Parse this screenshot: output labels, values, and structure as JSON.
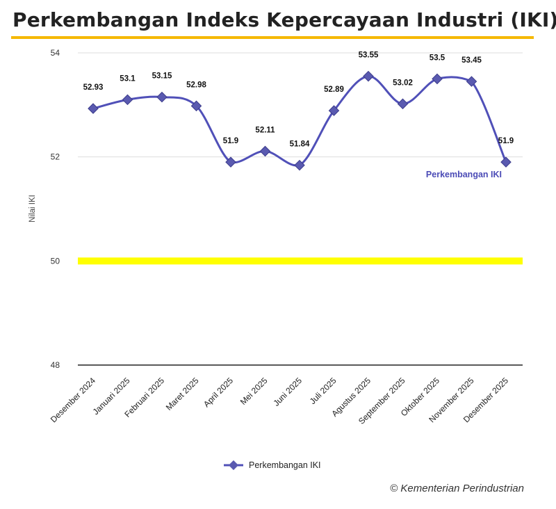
{
  "header": {
    "title": "Perkembangan Indeks Kepercayaan Industri (IKI)"
  },
  "footer": {
    "copyright": "© Kementerian Perindustrian"
  },
  "colors": {
    "line": "#5050b8",
    "marker": "#5a5ab0",
    "threshold": "#ffff00",
    "accent": "#f5b800",
    "grid": "#dddddd",
    "baseline": "#222222"
  },
  "chart_data": {
    "type": "line",
    "title": "Perkembangan Indeks Kepercayaan Industri (IKI)",
    "xlabel": "",
    "ylabel": "Nilai IKI",
    "ylim": [
      48,
      54
    ],
    "yticks": [
      "48",
      "50",
      "52",
      "54"
    ],
    "grid": true,
    "categories": [
      "Desember 2024",
      "Januari 2025",
      "Februari 2025",
      "Maret 2025",
      "April 2025",
      "Mei 2025",
      "Juni 2025",
      "Juli 2025",
      "Agustus 2025",
      "September 2025",
      "Oktober 2025",
      "November 2025",
      "Desember 2025"
    ],
    "series": [
      {
        "name": "Perkembangan IKI",
        "values": [
          52.93,
          53.1,
          53.15,
          52.98,
          51.9,
          52.11,
          51.84,
          52.89,
          53.55,
          53.02,
          53.5,
          53.45,
          51.9
        ],
        "labels": [
          "52.93",
          "53.1",
          "53.15",
          "52.98",
          "51.9",
          "52.11",
          "51.84",
          "52.89",
          "53.55",
          "53.02",
          "53.5",
          "53.45",
          "51.9"
        ]
      }
    ],
    "threshold": 50,
    "legend": "bottom-center",
    "series_label_placement": "right-end"
  }
}
